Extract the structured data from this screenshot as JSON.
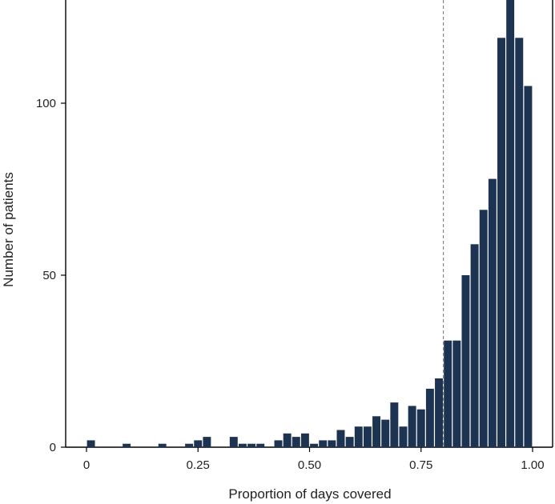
{
  "chart_data": {
    "type": "bar",
    "title": "",
    "xlabel": "Proportion of days covered",
    "ylabel": "Number of patients",
    "xlim": [
      0,
      1.0
    ],
    "ylim": [
      0,
      130
    ],
    "x_ticks": [
      {
        "value": 0,
        "label": "0"
      },
      {
        "value": 0.25,
        "label": "0.25"
      },
      {
        "value": 0.5,
        "label": "0.50"
      },
      {
        "value": 0.75,
        "label": "0.75"
      },
      {
        "value": 1.0,
        "label": "1.00"
      }
    ],
    "y_ticks": [
      {
        "value": 0,
        "label": "0"
      },
      {
        "value": 50,
        "label": "50"
      },
      {
        "value": 100,
        "label": "100"
      }
    ],
    "reference_line_x": 0.8,
    "bin_width": 0.02,
    "bar_color": "#1c3352",
    "grid": false,
    "bins": [
      {
        "x": 0.0,
        "count": 2
      },
      {
        "x": 0.08,
        "count": 1
      },
      {
        "x": 0.16,
        "count": 1
      },
      {
        "x": 0.22,
        "count": 1
      },
      {
        "x": 0.24,
        "count": 2
      },
      {
        "x": 0.26,
        "count": 3
      },
      {
        "x": 0.32,
        "count": 3
      },
      {
        "x": 0.34,
        "count": 1
      },
      {
        "x": 0.36,
        "count": 1
      },
      {
        "x": 0.38,
        "count": 1
      },
      {
        "x": 0.42,
        "count": 2
      },
      {
        "x": 0.44,
        "count": 4
      },
      {
        "x": 0.46,
        "count": 3
      },
      {
        "x": 0.48,
        "count": 4
      },
      {
        "x": 0.5,
        "count": 1
      },
      {
        "x": 0.52,
        "count": 2
      },
      {
        "x": 0.54,
        "count": 2
      },
      {
        "x": 0.56,
        "count": 5
      },
      {
        "x": 0.58,
        "count": 3
      },
      {
        "x": 0.6,
        "count": 6
      },
      {
        "x": 0.62,
        "count": 6
      },
      {
        "x": 0.64,
        "count": 9
      },
      {
        "x": 0.66,
        "count": 8
      },
      {
        "x": 0.68,
        "count": 13
      },
      {
        "x": 0.7,
        "count": 6
      },
      {
        "x": 0.72,
        "count": 12
      },
      {
        "x": 0.74,
        "count": 11
      },
      {
        "x": 0.76,
        "count": 17
      },
      {
        "x": 0.78,
        "count": 20
      },
      {
        "x": 0.8,
        "count": 31
      },
      {
        "x": 0.82,
        "count": 31
      },
      {
        "x": 0.84,
        "count": 50
      },
      {
        "x": 0.86,
        "count": 59
      },
      {
        "x": 0.88,
        "count": 69
      },
      {
        "x": 0.9,
        "count": 78
      },
      {
        "x": 0.92,
        "count": 119
      },
      {
        "x": 0.94,
        "count": 130
      },
      {
        "x": 0.96,
        "count": 119
      },
      {
        "x": 0.98,
        "count": 105
      }
    ]
  }
}
